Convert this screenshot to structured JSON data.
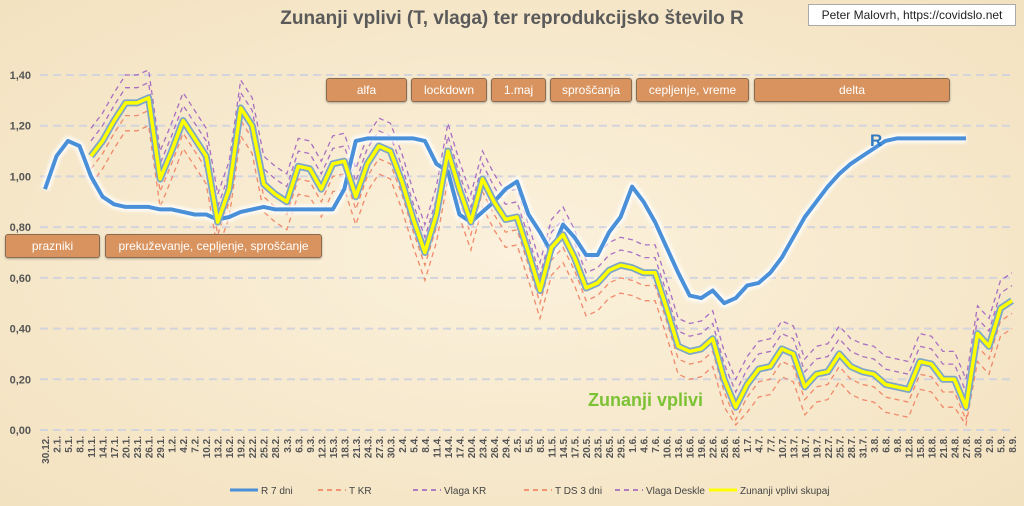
{
  "credit": "Peter Malovrh, https://covidslo.net",
  "annotations": {
    "r_label": "R",
    "z_label": "Zunanji vplivi",
    "events": [
      "alfa",
      "lockdown",
      "1.maj",
      "sproščanja",
      "cepljenje, vreme",
      "delta",
      "prazniki",
      "prekuževanje, cepljenje, sproščanje"
    ]
  },
  "colors": {
    "r": "#4a90d9",
    "tkr": "#f07858",
    "vlaga_kr": "#9b59c0",
    "tds": "#f07858",
    "vlaga_deskle": "#9b59c0",
    "zunanji": "#ffff00",
    "event_box": "#d9935e"
  },
  "chart_data": {
    "type": "line",
    "title": "Zunanji vplivi (T, vlaga) ter reprodukcijsko število R",
    "xlabel": "",
    "ylabel": "",
    "ylim": [
      0,
      1.4
    ],
    "yticks": [
      "0,00",
      "0,20",
      "0,40",
      "0,60",
      "0,80",
      "1,00",
      "1,20",
      "1,40"
    ],
    "grid": true,
    "legend_position": "bottom",
    "x": [
      "30.12.",
      "2.1.",
      "5.1.",
      "8.1.",
      "11.1.",
      "14.1.",
      "17.1.",
      "20.1.",
      "23.1.",
      "26.1.",
      "29.1.",
      "1.2.",
      "4.2.",
      "7.2.",
      "10.2.",
      "13.2.",
      "16.2.",
      "19.2.",
      "22.2.",
      "25.2.",
      "28.2.",
      "3.3.",
      "6.3.",
      "9.3.",
      "12.3.",
      "15.3.",
      "18.3.",
      "21.3.",
      "24.3.",
      "27.3.",
      "30.3.",
      "2.4.",
      "5.4.",
      "8.4.",
      "11.4.",
      "14.4.",
      "17.4.",
      "20.4.",
      "23.4.",
      "26.4.",
      "29.4.",
      "2.5.",
      "5.5.",
      "8.5.",
      "11.5.",
      "14.5.",
      "17.5.",
      "20.5.",
      "23.5.",
      "26.5.",
      "29.5.",
      "1.6.",
      "4.6.",
      "7.6.",
      "10.6.",
      "13.6.",
      "16.6.",
      "19.6.",
      "22.6.",
      "25.6.",
      "28.6.",
      "1.7.",
      "4.7.",
      "7.7.",
      "10.7.",
      "13.7.",
      "16.7.",
      "19.7.",
      "22.7.",
      "25.7.",
      "28.7.",
      "31.7.",
      "3.8.",
      "6.8.",
      "9.8.",
      "12.8.",
      "15.8.",
      "18.8.",
      "21.8.",
      "24.8.",
      "27.8.",
      "30.8.",
      "2.9.",
      "5.9.",
      "8.9."
    ],
    "series": [
      {
        "name": "T KR",
        "key": "tkr",
        "dash": true,
        "values": [
          null,
          null,
          null,
          null,
          1.03,
          1.09,
          1.17,
          1.24,
          1.24,
          1.26,
          0.94,
          1.05,
          1.17,
          1.1,
          1.03,
          0.77,
          0.9,
          1.22,
          1.15,
          0.92,
          0.88,
          0.85,
          0.99,
          0.98,
          0.9,
          1.0,
          1.01,
          0.87,
          1.0,
          1.07,
          1.05,
          0.93,
          0.78,
          0.65,
          0.8,
          1.05,
          0.9,
          0.77,
          0.94,
          0.85,
          0.78,
          0.79,
          0.65,
          0.5,
          0.67,
          0.72,
          0.63,
          0.51,
          0.53,
          0.58,
          0.6,
          0.59,
          0.57,
          0.57,
          0.43,
          0.28,
          0.26,
          0.27,
          0.31,
          0.15,
          0.04,
          0.13,
          0.19,
          0.2,
          0.27,
          0.25,
          0.12,
          0.17,
          0.18,
          0.25,
          0.2,
          0.18,
          0.17,
          0.13,
          0.12,
          0.11,
          0.22,
          0.21,
          0.15,
          0.15,
          0.04,
          0.33,
          0.28,
          0.43,
          0.46
        ]
      },
      {
        "name": "Vlaga KR",
        "key": "vlaga_kr",
        "dash": true,
        "values": [
          null,
          null,
          null,
          null,
          1.14,
          1.2,
          1.28,
          1.35,
          1.35,
          1.37,
          1.05,
          1.16,
          1.28,
          1.21,
          1.14,
          0.88,
          1.01,
          1.33,
          1.26,
          1.03,
          0.99,
          0.96,
          1.1,
          1.09,
          1.01,
          1.11,
          1.12,
          0.98,
          1.11,
          1.18,
          1.16,
          1.04,
          0.89,
          0.76,
          0.91,
          1.16,
          1.01,
          0.88,
          1.05,
          0.96,
          0.89,
          0.9,
          0.76,
          0.61,
          0.78,
          0.83,
          0.74,
          0.62,
          0.64,
          0.69,
          0.71,
          0.7,
          0.68,
          0.68,
          0.54,
          0.39,
          0.37,
          0.38,
          0.42,
          0.26,
          0.15,
          0.24,
          0.3,
          0.31,
          0.38,
          0.36,
          0.23,
          0.28,
          0.29,
          0.36,
          0.31,
          0.29,
          0.28,
          0.24,
          0.23,
          0.22,
          0.33,
          0.32,
          0.26,
          0.26,
          0.15,
          0.44,
          0.39,
          0.54,
          0.57
        ]
      },
      {
        "name": "T DS 3 dni",
        "key": "tds",
        "dash": true,
        "values": [
          null,
          null,
          null,
          null,
          0.97,
          1.03,
          1.11,
          1.18,
          1.18,
          1.2,
          0.88,
          0.99,
          1.11,
          1.04,
          0.97,
          0.71,
          0.84,
          1.16,
          1.09,
          0.86,
          0.82,
          0.79,
          0.93,
          0.92,
          0.84,
          0.94,
          0.95,
          0.81,
          0.94,
          1.01,
          0.99,
          0.87,
          0.72,
          0.59,
          0.74,
          0.99,
          0.84,
          0.71,
          0.88,
          0.79,
          0.72,
          0.73,
          0.59,
          0.44,
          0.61,
          0.66,
          0.57,
          0.45,
          0.47,
          0.52,
          0.54,
          0.53,
          0.51,
          0.51,
          0.37,
          0.22,
          0.2,
          0.21,
          0.25,
          0.09,
          0.02,
          0.07,
          0.13,
          0.14,
          0.21,
          0.19,
          0.06,
          0.11,
          0.12,
          0.19,
          0.14,
          0.12,
          0.11,
          0.07,
          0.06,
          0.05,
          0.16,
          0.15,
          0.09,
          0.09,
          0.02,
          0.27,
          0.22,
          0.37,
          0.4
        ]
      },
      {
        "name": "Vlaga Deskle",
        "key": "vlaga_deskle",
        "dash": true,
        "values": [
          null,
          null,
          null,
          null,
          1.19,
          1.25,
          1.33,
          1.4,
          1.4,
          1.42,
          1.1,
          1.21,
          1.33,
          1.26,
          1.19,
          0.93,
          1.06,
          1.38,
          1.31,
          1.08,
          1.04,
          1.01,
          1.15,
          1.14,
          1.06,
          1.16,
          1.17,
          1.03,
          1.16,
          1.23,
          1.21,
          1.09,
          0.94,
          0.81,
          0.96,
          1.21,
          1.06,
          0.93,
          1.1,
          1.01,
          0.94,
          0.95,
          0.81,
          0.66,
          0.83,
          0.88,
          0.79,
          0.67,
          0.69,
          0.74,
          0.76,
          0.75,
          0.73,
          0.73,
          0.59,
          0.44,
          0.42,
          0.43,
          0.47,
          0.31,
          0.2,
          0.29,
          0.35,
          0.36,
          0.43,
          0.41,
          0.28,
          0.33,
          0.34,
          0.41,
          0.36,
          0.34,
          0.33,
          0.29,
          0.28,
          0.27,
          0.38,
          0.37,
          0.31,
          0.31,
          0.2,
          0.49,
          0.44,
          0.59,
          0.62
        ]
      },
      {
        "name": "R 7 dni",
        "key": "r",
        "dash": false,
        "values": [
          0.95,
          1.08,
          1.14,
          1.12,
          1.0,
          0.92,
          0.89,
          0.88,
          0.88,
          0.88,
          0.87,
          0.87,
          0.86,
          0.85,
          0.85,
          0.83,
          0.84,
          0.86,
          0.87,
          0.88,
          0.87,
          0.87,
          0.87,
          0.87,
          0.87,
          0.87,
          0.95,
          1.14,
          1.15,
          1.15,
          1.15,
          1.15,
          1.15,
          1.14,
          1.05,
          1.02,
          0.85,
          0.82,
          0.86,
          0.9,
          0.95,
          0.98,
          0.85,
          0.78,
          0.7,
          0.81,
          0.76,
          0.69,
          0.69,
          0.78,
          0.84,
          0.96,
          0.9,
          0.82,
          0.72,
          0.62,
          0.53,
          0.52,
          0.55,
          0.5,
          0.52,
          0.57,
          0.58,
          0.62,
          0.68,
          0.76,
          0.84,
          0.9,
          0.96,
          1.01,
          1.05,
          1.08,
          1.11,
          1.14,
          1.15,
          1.15,
          1.15,
          1.15,
          1.15,
          1.15,
          1.15,
          null,
          null,
          null,
          null
        ]
      },
      {
        "name": "Zunanji vplivi skupaj",
        "key": "zunanji",
        "dash": false,
        "values": [
          null,
          null,
          null,
          null,
          1.08,
          1.14,
          1.22,
          1.29,
          1.29,
          1.31,
          0.99,
          1.1,
          1.22,
          1.15,
          1.08,
          0.82,
          0.95,
          1.27,
          1.2,
          0.97,
          0.93,
          0.9,
          1.04,
          1.03,
          0.95,
          1.05,
          1.06,
          0.92,
          1.05,
          1.12,
          1.1,
          0.98,
          0.83,
          0.7,
          0.85,
          1.1,
          0.95,
          0.82,
          0.99,
          0.9,
          0.83,
          0.84,
          0.7,
          0.55,
          0.72,
          0.77,
          0.68,
          0.56,
          0.58,
          0.63,
          0.65,
          0.64,
          0.62,
          0.62,
          0.48,
          0.33,
          0.31,
          0.32,
          0.36,
          0.2,
          0.09,
          0.18,
          0.24,
          0.25,
          0.32,
          0.3,
          0.17,
          0.22,
          0.23,
          0.3,
          0.25,
          0.23,
          0.22,
          0.18,
          0.17,
          0.16,
          0.27,
          0.26,
          0.2,
          0.2,
          0.09,
          0.38,
          0.33,
          0.48,
          0.51
        ]
      }
    ],
    "legend_order": [
      "r",
      "tkr",
      "vlaga_kr",
      "tds",
      "vlaga_deskle",
      "zunanji"
    ]
  }
}
